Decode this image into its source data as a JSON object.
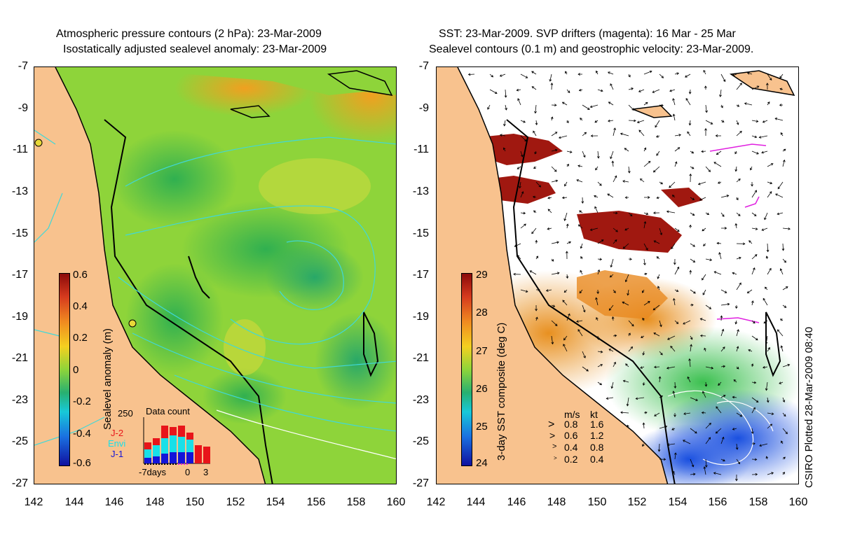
{
  "left_panel": {
    "title_line1": "Atmospheric pressure contours (2 hPa): 23-Mar-2009",
    "title_line2": "Isostatically adjusted sealevel anomaly: 23-Mar-2009",
    "y_ticks": [
      "-7",
      "-9",
      "-11",
      "-13",
      "-15",
      "-17",
      "-19",
      "-21",
      "-23",
      "-25",
      "-27"
    ],
    "x_ticks": [
      "142",
      "144",
      "146",
      "148",
      "150",
      "152",
      "154",
      "156",
      "158",
      "160"
    ],
    "colorbar": {
      "title": "Sealevel anomaly (m)",
      "ticks": [
        "0.6",
        "0.4",
        "0.2",
        "0",
        "-0.2",
        "-0.4",
        "-0.6"
      ]
    },
    "data_count": {
      "title": "Data count",
      "max_label": "250",
      "legend": [
        "J-2",
        "Envi",
        "J-1"
      ],
      "legend_colors": [
        "#e8141a",
        "#18e0e8",
        "#1414d8"
      ],
      "x_labels": [
        "-7days",
        "0",
        "3"
      ]
    }
  },
  "right_panel": {
    "title_line1": "SST: 23-Mar-2009. SVP drifters (magenta): 16 Mar - 25 Mar",
    "title_line2": "Sealevel contours (0.1 m) and geostrophic velocity: 23-Mar-2009.",
    "y_ticks": [
      "-7",
      "-9",
      "-11",
      "-13",
      "-15",
      "-17",
      "-19",
      "-21",
      "-23",
      "-25",
      "-27"
    ],
    "x_ticks": [
      "142",
      "144",
      "146",
      "148",
      "150",
      "152",
      "154",
      "156",
      "158",
      "160"
    ],
    "colorbar": {
      "title": "3-day SST composite (deg C)",
      "ticks": [
        "29",
        "28",
        "27",
        "26",
        "25",
        "24"
      ]
    },
    "velocity_legend": {
      "header_ms": "m/s",
      "header_kt": "kt",
      "rows": [
        {
          "ms": "0.8",
          "kt": "1.6"
        },
        {
          "ms": "0.6",
          "kt": "1.2"
        },
        {
          "ms": "0.4",
          "kt": "0.8"
        },
        {
          "ms": "0.2",
          "kt": "0.4"
        }
      ]
    }
  },
  "credit": "CSIRO Plotted 28-Mar-2009 08:40",
  "colors": {
    "land": "#f8c28e",
    "coast": "#000000",
    "contour_cyan": "#40d8d8",
    "drifter_magenta": "#e020e0"
  },
  "map_extent": {
    "lon_range": [
      142,
      160
    ],
    "lat_range": [
      -27,
      -7
    ]
  }
}
